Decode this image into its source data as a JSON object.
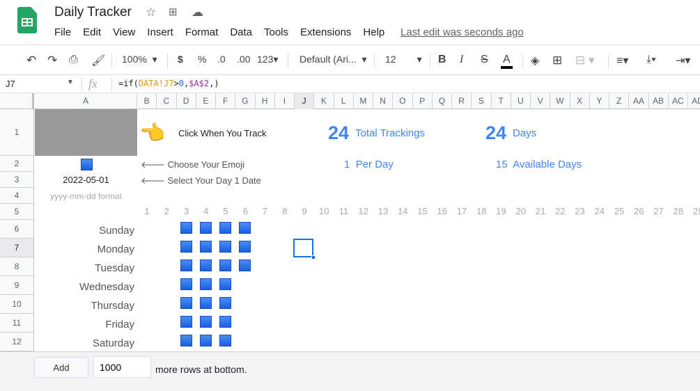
{
  "app": {
    "title": "Daily Tracker",
    "menu": [
      "File",
      "Edit",
      "View",
      "Insert",
      "Format",
      "Data",
      "Tools",
      "Extensions",
      "Help"
    ],
    "last_edit": "Last edit was seconds ago"
  },
  "toolbar": {
    "zoom": "100%",
    "currency": "$",
    "percent": "%",
    "dec_less": ".0",
    "dec_more": ".00",
    "format": "123",
    "font": "Default (Ari...",
    "font_size": "12",
    "bold": "B",
    "italic": "I",
    "strike": "S",
    "text_color": "A",
    "text_color_value": "#000000"
  },
  "formula_bar": {
    "cell_ref": "J7",
    "fx": "fx",
    "formula_parts": [
      {
        "t": "=if(",
        "c": "#202124"
      },
      {
        "t": "DATA!J7",
        "c": "#f09300"
      },
      {
        "t": ">",
        "c": "#202124"
      },
      {
        "t": "0",
        "c": "#1a73e8"
      },
      {
        "t": ",",
        "c": "#202124"
      },
      {
        "t": "$A$2",
        "c": "#9c27b0"
      },
      {
        "t": ",)",
        "c": "#202124"
      }
    ]
  },
  "columns": [
    "A",
    "B",
    "C",
    "D",
    "E",
    "F",
    "G",
    "H",
    "I",
    "J",
    "K",
    "L",
    "M",
    "N",
    "O",
    "P",
    "Q",
    "R",
    "S",
    "T",
    "U",
    "V",
    "W",
    "X",
    "Y",
    "Z",
    "AA",
    "AB",
    "AC",
    "AD"
  ],
  "rows": [
    "1",
    "2",
    "3",
    "4",
    "5",
    "6",
    "7",
    "8",
    "9",
    "10",
    "11",
    "12"
  ],
  "selected_cell": {
    "col": "J",
    "row": "7"
  },
  "sheet": {
    "click_label": "Click When You Track",
    "total_count": "24",
    "total_label": "Total Trackings",
    "days_count": "24",
    "days_label": "Days",
    "per_day_count": "1",
    "per_day_label": "Per Day",
    "available_count": "15",
    "available_label": "Available Days",
    "choose_emoji": "Choose Your Emoji",
    "select_date": "Select Your Day 1 Date",
    "date": "2022-05-01",
    "date_hint": "yyyy-mm-dd format",
    "day_numbers": [
      "1",
      "2",
      "3",
      "4",
      "5",
      "6",
      "7",
      "8",
      "9",
      "10",
      "11",
      "12",
      "13",
      "14",
      "15",
      "16",
      "17",
      "18",
      "19",
      "20",
      "21",
      "22",
      "23",
      "24",
      "25",
      "26",
      "27",
      "28",
      "29"
    ],
    "days": [
      {
        "name": "Sunday",
        "marks": [
          3,
          4,
          5,
          6
        ]
      },
      {
        "name": "Monday",
        "marks": [
          3,
          4,
          5,
          6
        ]
      },
      {
        "name": "Tuesday",
        "marks": [
          3,
          4,
          5,
          6
        ]
      },
      {
        "name": "Wednesday",
        "marks": [
          3,
          4,
          5
        ]
      },
      {
        "name": "Thursday",
        "marks": [
          3,
          4,
          5
        ]
      },
      {
        "name": "Friday",
        "marks": [
          3,
          4,
          5
        ]
      },
      {
        "name": "Saturday",
        "marks": [
          3,
          4,
          5
        ]
      }
    ],
    "accent": "#4285f4",
    "mark_color": "#1a5fe0"
  },
  "bottom": {
    "add_label": "Add",
    "rows_value": "1000",
    "rows_suffix": "more rows at bottom."
  }
}
